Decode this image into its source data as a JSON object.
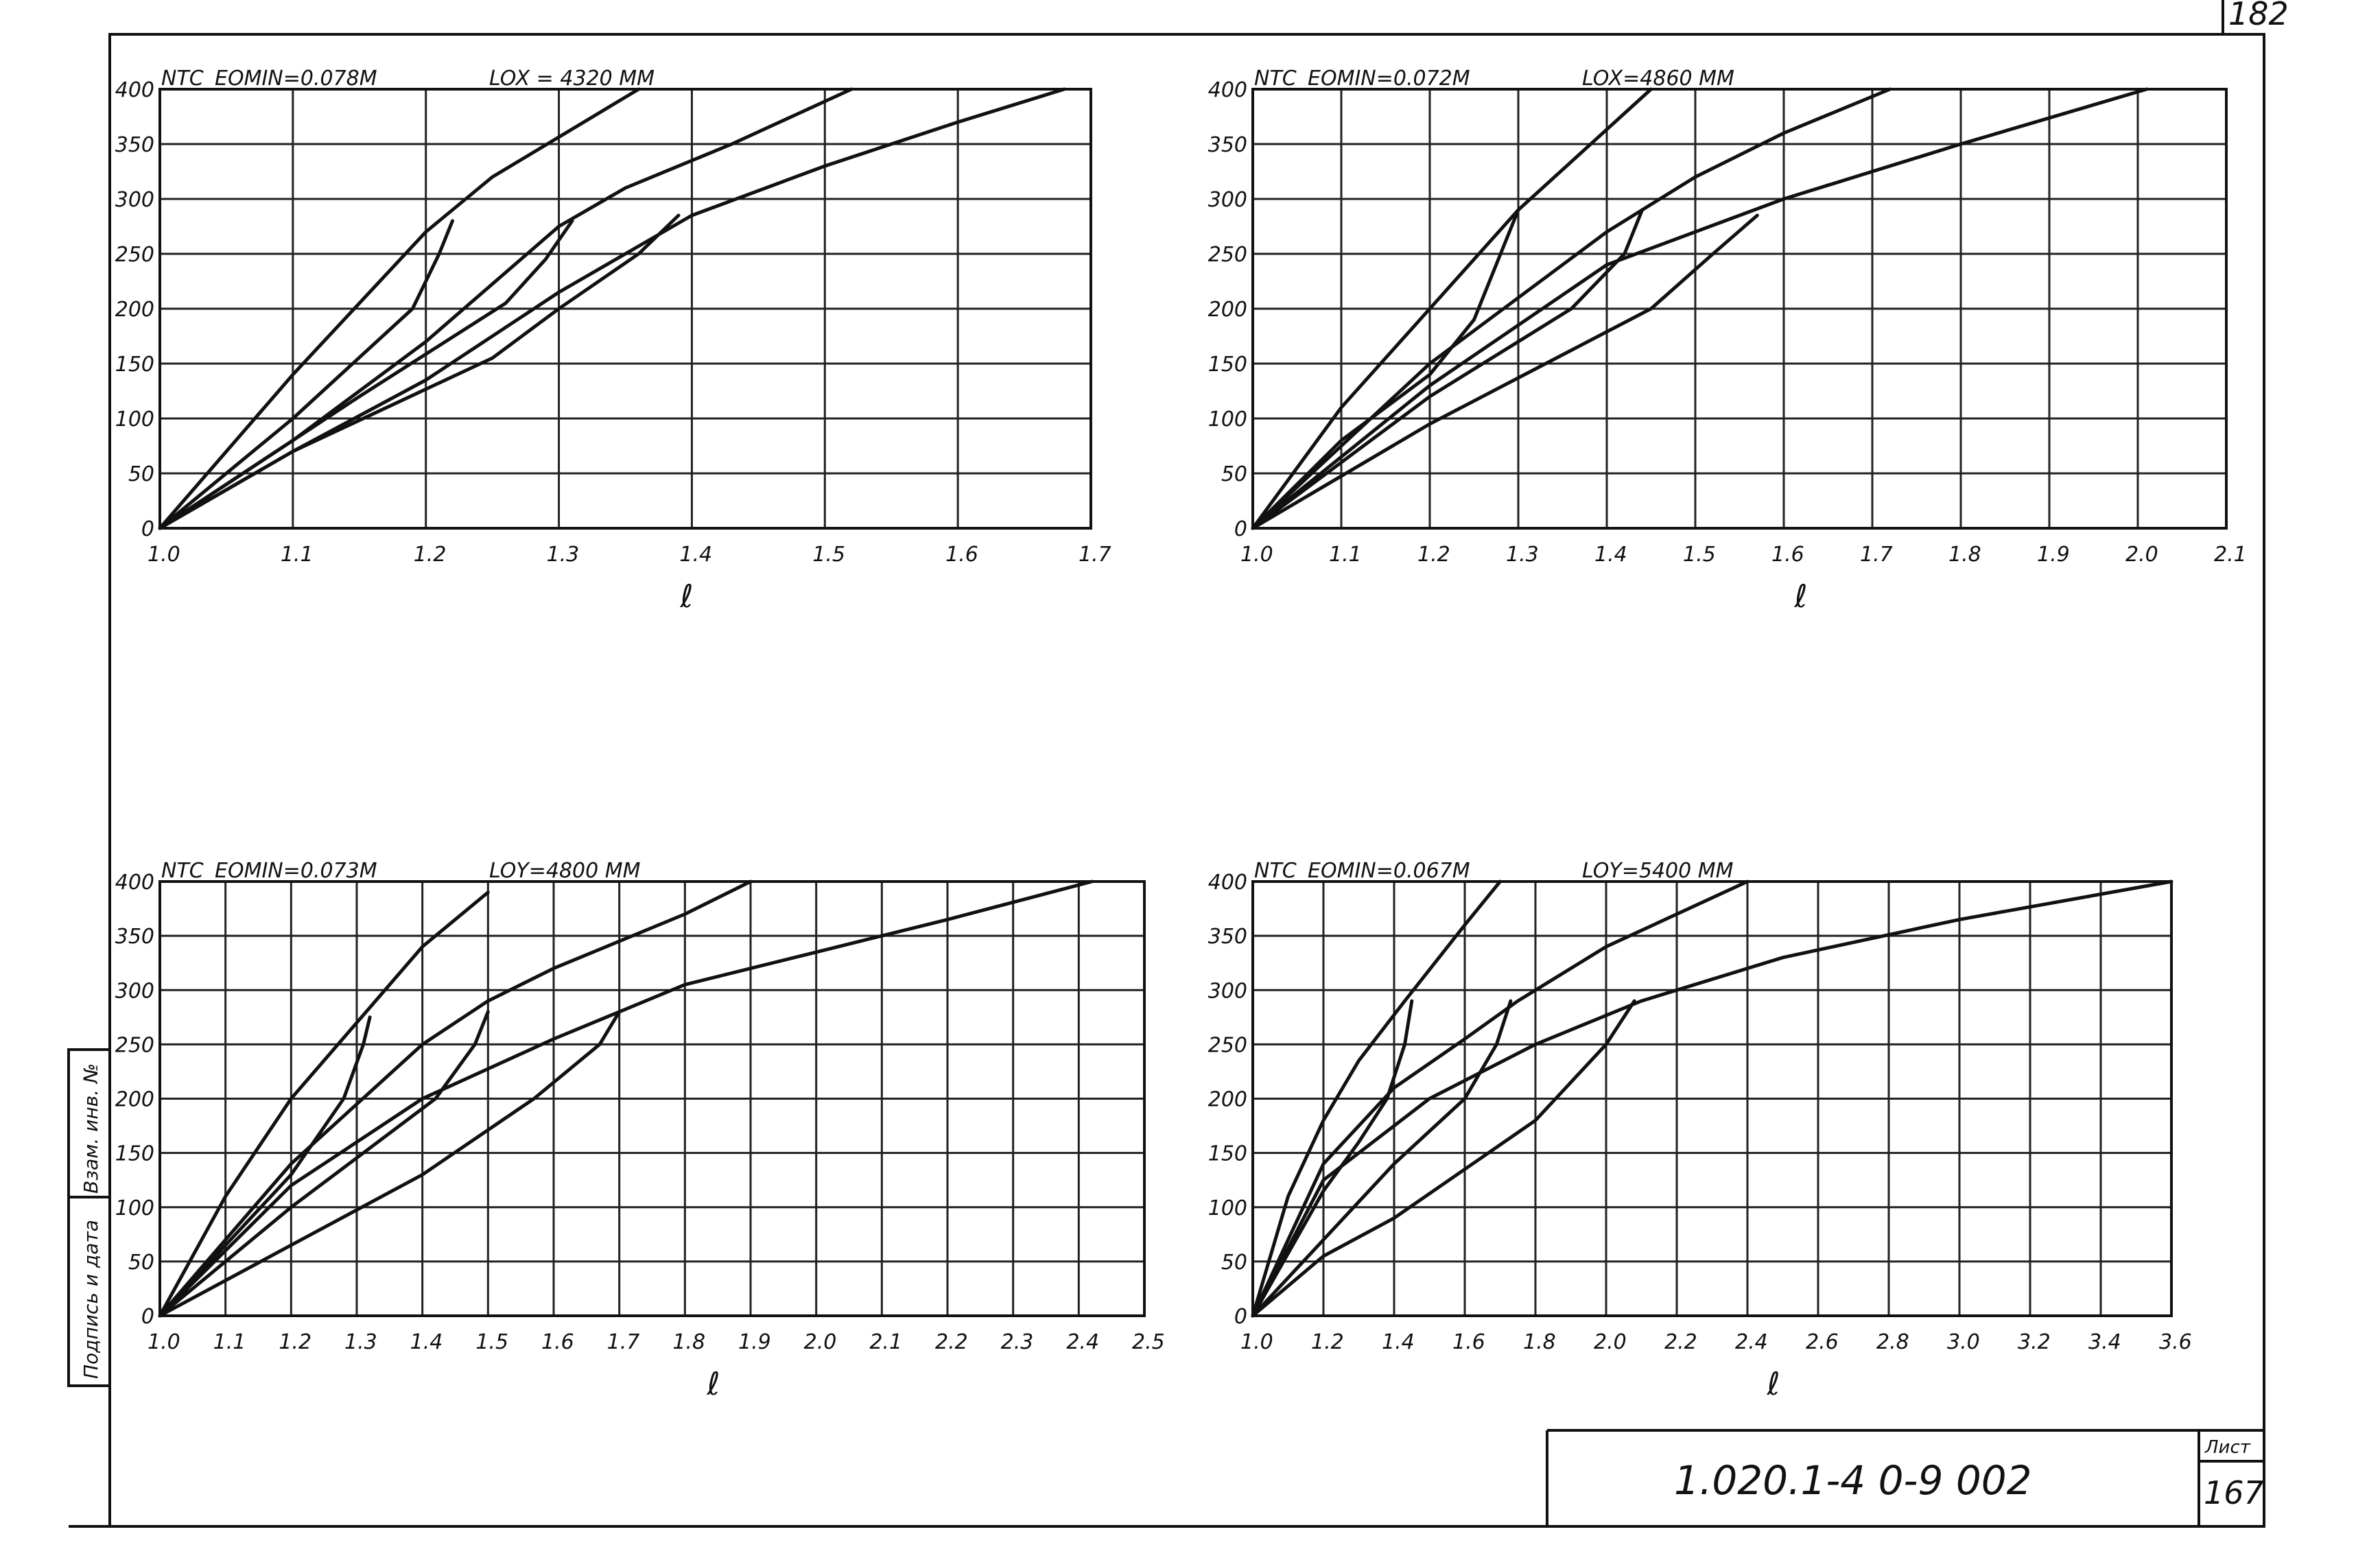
{
  "page_number": "182",
  "charts": [
    {
      "series_label": "NTC",
      "eomin": "EOMIN=0.078M",
      "lo": "LOX = 4320 MM",
      "xlabel": "ℓ",
      "x_ticks": [
        "1.0",
        "1.1",
        "1.2",
        "1.3",
        "1.4",
        "1.5",
        "1.6",
        "1.7"
      ],
      "y_ticks": [
        "0",
        "50",
        "100",
        "150",
        "200",
        "250",
        "300",
        "350",
        "400"
      ]
    },
    {
      "series_label": "NTC",
      "eomin": "EOMIN=0.072M",
      "lo": "LOX=4860 MM",
      "xlabel": "ℓ",
      "x_ticks": [
        "1.0",
        "1.1",
        "1.2",
        "1.3",
        "1.4",
        "1.5",
        "1.6",
        "1.7",
        "1.8",
        "1.9",
        "2.0",
        "2.1"
      ],
      "y_ticks": [
        "0",
        "50",
        "100",
        "150",
        "200",
        "250",
        "300",
        "350",
        "400"
      ]
    },
    {
      "series_label": "NTC",
      "eomin": "EOMIN=0.073M",
      "lo": "LOY=4800 MM",
      "xlabel": "ℓ",
      "x_ticks": [
        "1.0",
        "1.1",
        "1.2",
        "1.3",
        "1.4",
        "1.5",
        "1.6",
        "1.7",
        "1.8",
        "1.9",
        "2.0",
        "2.1",
        "2.2",
        "2.3",
        "2.4",
        "2.5"
      ],
      "y_ticks": [
        "0",
        "50",
        "100",
        "150",
        "200",
        "250",
        "300",
        "350",
        "400"
      ]
    },
    {
      "series_label": "NTC",
      "eomin": "EOMIN=0.067M",
      "lo": "LOY=5400 MM",
      "xlabel": "ℓ",
      "x_ticks": [
        "1.0",
        "1.2",
        "1.4",
        "1.6",
        "1.8",
        "2.0",
        "2.2",
        "2.4",
        "2.6",
        "2.8",
        "3.0",
        "3.2",
        "3.4",
        "3.6"
      ],
      "y_ticks": [
        "0",
        "50",
        "100",
        "150",
        "200",
        "250",
        "300",
        "350",
        "400"
      ]
    }
  ],
  "side_stamp": {
    "top_label": "Взам. инв. №",
    "bottom_label": "Подпись и дата"
  },
  "title_block": {
    "code": "1.020.1-4  0-9  002",
    "sheet_label": "Лист",
    "sheet_number": "167"
  },
  "chart_data": [
    {
      "type": "line",
      "title": "",
      "xlabel": "ℓ",
      "ylabel": "NTC",
      "xlim": [
        1.0,
        1.7
      ],
      "ylim": [
        0,
        400
      ],
      "grid": true,
      "series": [
        {
          "values": [
            [
              1.0,
              0
            ],
            [
              1.1,
              140
            ],
            [
              1.2,
              270
            ],
            [
              1.25,
              320
            ],
            [
              1.36,
              400
            ]
          ]
        },
        {
          "values": [
            [
              1.0,
              0
            ],
            [
              1.1,
              80
            ],
            [
              1.2,
              170
            ],
            [
              1.3,
              275
            ],
            [
              1.35,
              310
            ],
            [
              1.43,
              350
            ],
            [
              1.52,
              400
            ]
          ]
        },
        {
          "values": [
            [
              1.0,
              0
            ],
            [
              1.1,
              70
            ],
            [
              1.2,
              135
            ],
            [
              1.3,
              215
            ],
            [
              1.4,
              285
            ],
            [
              1.5,
              330
            ],
            [
              1.6,
              370
            ],
            [
              1.68,
              400
            ]
          ]
        },
        {
          "values": [
            [
              1.22,
              280
            ],
            [
              1.21,
              250
            ],
            [
              1.19,
              200
            ],
            [
              1.1,
              100
            ],
            [
              1.0,
              0
            ]
          ]
        },
        {
          "values": [
            [
              1.31,
              280
            ],
            [
              1.29,
              245
            ],
            [
              1.26,
              205
            ],
            [
              1.15,
              120
            ],
            [
              1.0,
              0
            ]
          ]
        },
        {
          "values": [
            [
              1.39,
              285
            ],
            [
              1.36,
              250
            ],
            [
              1.3,
              200
            ],
            [
              1.25,
              155
            ],
            [
              1.1,
              70
            ],
            [
              1.0,
              0
            ]
          ]
        }
      ]
    },
    {
      "type": "line",
      "title": "",
      "xlabel": "ℓ",
      "ylabel": "NTC",
      "xlim": [
        1.0,
        2.1
      ],
      "ylim": [
        0,
        400
      ],
      "grid": true,
      "series": [
        {
          "values": [
            [
              1.0,
              0
            ],
            [
              1.1,
              110
            ],
            [
              1.2,
              200
            ],
            [
              1.3,
              290
            ],
            [
              1.45,
              400
            ]
          ]
        },
        {
          "values": [
            [
              1.0,
              0
            ],
            [
              1.2,
              150
            ],
            [
              1.4,
              270
            ],
            [
              1.5,
              320
            ],
            [
              1.6,
              360
            ],
            [
              1.72,
              400
            ]
          ]
        },
        {
          "values": [
            [
              1.0,
              0
            ],
            [
              1.2,
              130
            ],
            [
              1.4,
              240
            ],
            [
              1.6,
              300
            ],
            [
              1.8,
              350
            ],
            [
              2.01,
              400
            ]
          ]
        },
        {
          "values": [
            [
              1.3,
              290
            ],
            [
              1.28,
              250
            ],
            [
              1.25,
              190
            ],
            [
              1.2,
              140
            ],
            [
              1.1,
              80
            ],
            [
              1.0,
              0
            ]
          ]
        },
        {
          "values": [
            [
              1.44,
              290
            ],
            [
              1.42,
              250
            ],
            [
              1.36,
              200
            ],
            [
              1.2,
              120
            ],
            [
              1.0,
              0
            ]
          ]
        },
        {
          "values": [
            [
              1.57,
              285
            ],
            [
              1.52,
              250
            ],
            [
              1.45,
              200
            ],
            [
              1.2,
              95
            ],
            [
              1.0,
              0
            ]
          ]
        }
      ]
    },
    {
      "type": "line",
      "title": "",
      "xlabel": "ℓ",
      "ylabel": "NTC",
      "xlim": [
        1.0,
        2.5
      ],
      "ylim": [
        0,
        400
      ],
      "grid": true,
      "series": [
        {
          "values": [
            [
              1.0,
              0
            ],
            [
              1.1,
              110
            ],
            [
              1.2,
              200
            ],
            [
              1.3,
              270
            ],
            [
              1.4,
              340
            ],
            [
              1.5,
              390
            ]
          ]
        },
        {
          "values": [
            [
              1.0,
              0
            ],
            [
              1.2,
              140
            ],
            [
              1.4,
              250
            ],
            [
              1.5,
              290
            ],
            [
              1.6,
              320
            ],
            [
              1.8,
              370
            ],
            [
              1.9,
              400
            ]
          ]
        },
        {
          "values": [
            [
              1.0,
              0
            ],
            [
              1.2,
              120
            ],
            [
              1.4,
              200
            ],
            [
              1.6,
              255
            ],
            [
              1.8,
              305
            ],
            [
              2.0,
              335
            ],
            [
              2.2,
              365
            ],
            [
              2.42,
              400
            ]
          ]
        },
        {
          "values": [
            [
              1.32,
              275
            ],
            [
              1.31,
              250
            ],
            [
              1.28,
              200
            ],
            [
              1.2,
              130
            ],
            [
              1.0,
              0
            ]
          ]
        },
        {
          "values": [
            [
              1.5,
              280
            ],
            [
              1.48,
              250
            ],
            [
              1.42,
              200
            ],
            [
              1.2,
              100
            ],
            [
              1.0,
              0
            ]
          ]
        },
        {
          "values": [
            [
              1.7,
              280
            ],
            [
              1.67,
              250
            ],
            [
              1.57,
              200
            ],
            [
              1.4,
              130
            ],
            [
              1.2,
              65
            ],
            [
              1.0,
              0
            ]
          ]
        }
      ]
    },
    {
      "type": "line",
      "title": "",
      "xlabel": "ℓ",
      "ylabel": "NTC",
      "xlim": [
        1.0,
        3.6
      ],
      "ylim": [
        0,
        400
      ],
      "grid": true,
      "series": [
        {
          "values": [
            [
              1.0,
              0
            ],
            [
              1.1,
              110
            ],
            [
              1.2,
              180
            ],
            [
              1.3,
              235
            ],
            [
              1.43,
              290
            ],
            [
              1.6,
              360
            ],
            [
              1.7,
              400
            ]
          ]
        },
        {
          "values": [
            [
              1.0,
              0
            ],
            [
              1.2,
              140
            ],
            [
              1.4,
              210
            ],
            [
              1.6,
              255
            ],
            [
              1.75,
              290
            ],
            [
              2.0,
              340
            ],
            [
              2.2,
              370
            ],
            [
              2.4,
              400
            ]
          ]
        },
        {
          "values": [
            [
              1.0,
              0
            ],
            [
              1.2,
              125
            ],
            [
              1.5,
              200
            ],
            [
              1.8,
              250
            ],
            [
              2.1,
              290
            ],
            [
              2.5,
              330
            ],
            [
              3.0,
              365
            ],
            [
              3.6,
              400
            ]
          ]
        },
        {
          "values": [
            [
              1.45,
              290
            ],
            [
              1.43,
              250
            ],
            [
              1.38,
              200
            ],
            [
              1.3,
              160
            ],
            [
              1.2,
              115
            ],
            [
              1.0,
              0
            ]
          ]
        },
        {
          "values": [
            [
              1.73,
              290
            ],
            [
              1.69,
              250
            ],
            [
              1.6,
              200
            ],
            [
              1.4,
              140
            ],
            [
              1.2,
              70
            ],
            [
              1.0,
              0
            ]
          ]
        },
        {
          "values": [
            [
              2.08,
              290
            ],
            [
              2.0,
              250
            ],
            [
              1.8,
              180
            ],
            [
              1.4,
              90
            ],
            [
              1.2,
              55
            ],
            [
              1.0,
              0
            ]
          ]
        }
      ]
    }
  ]
}
